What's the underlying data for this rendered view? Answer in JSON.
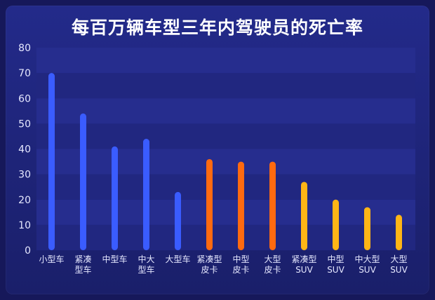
{
  "chart_data": {
    "type": "bar",
    "title": "每百万辆车型三年内驾驶员的死亡率",
    "xlabel": "",
    "ylabel": "",
    "ylim": [
      0,
      80
    ],
    "yticks": [
      0,
      10,
      20,
      30,
      40,
      50,
      60,
      70,
      80
    ],
    "grid": true,
    "categories": [
      [
        "小型车"
      ],
      [
        "紧凑",
        "型车"
      ],
      [
        "中型车"
      ],
      [
        "中大",
        "型车"
      ],
      [
        "大型车"
      ],
      [
        "紧凑型",
        "皮卡"
      ],
      [
        "中型",
        "皮卡"
      ],
      [
        "大型",
        "皮卡"
      ],
      [
        "紧凑型",
        "SUV"
      ],
      [
        "中型",
        "SUV"
      ],
      [
        "中大型",
        "SUV"
      ],
      [
        "大型",
        "SUV"
      ]
    ],
    "values": [
      70,
      54,
      41,
      44,
      23,
      36,
      35,
      35,
      27,
      20,
      17,
      14
    ],
    "bar_colors": [
      "#3a5cff",
      "#3a5cff",
      "#3a5cff",
      "#3a5cff",
      "#3a5cff",
      "#ff6a10",
      "#ff6a10",
      "#ff6a10",
      "#ffb516",
      "#ffb516",
      "#ffb516",
      "#ffb516"
    ]
  },
  "colors": {
    "background": "#16185a",
    "plot_band_dark": "#212780",
    "plot_band_light": "#262d8e",
    "axis_text": "#e6e8ff"
  }
}
